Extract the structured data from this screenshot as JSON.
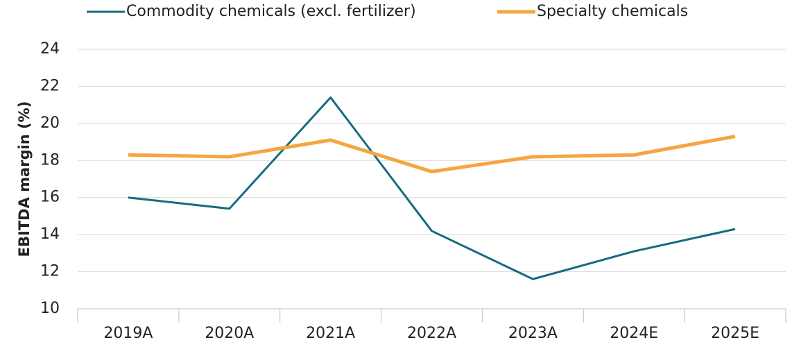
{
  "chart_data": {
    "type": "line",
    "y_label": "EBITDA margin (%)",
    "categories": [
      "2019A",
      "2020A",
      "2021A",
      "2022A",
      "2023A",
      "2024E",
      "2025E"
    ],
    "series": [
      {
        "name": "Commodity chemicals (excl. fertilizer)",
        "color": "#176b80",
        "values": [
          16.0,
          15.4,
          21.4,
          14.2,
          11.6,
          13.1,
          14.3
        ]
      },
      {
        "name": "Specialty chemicals",
        "color": "#f4a640",
        "values": [
          18.3,
          18.2,
          19.1,
          17.4,
          18.2,
          18.3,
          19.3
        ]
      }
    ],
    "ylim": [
      10,
      24
    ],
    "yticks": [
      10,
      12,
      14,
      16,
      18,
      20,
      22,
      24
    ],
    "grid": true,
    "legend": "top"
  }
}
